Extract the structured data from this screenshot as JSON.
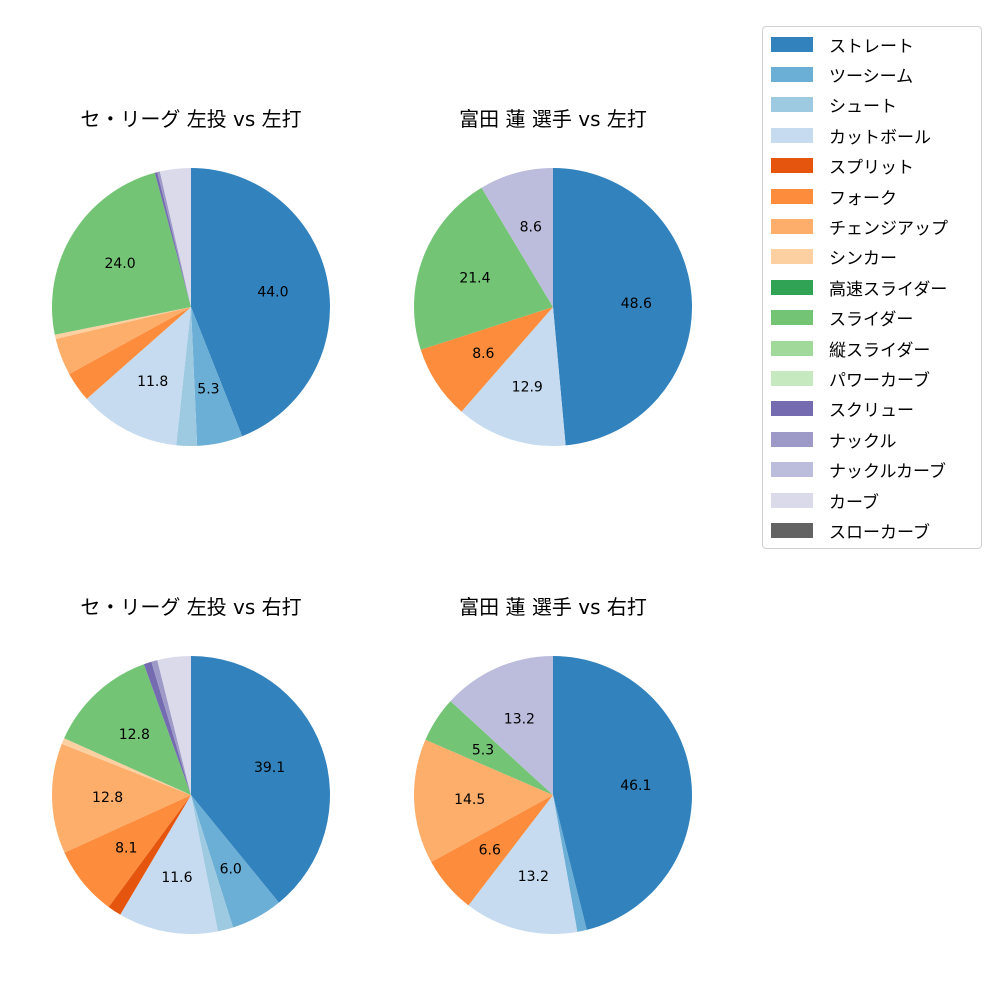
{
  "legend": {
    "items": [
      {
        "label": "ストレート",
        "color": "#3182bd"
      },
      {
        "label": "ツーシーム",
        "color": "#6baed6"
      },
      {
        "label": "シュート",
        "color": "#9ecae1"
      },
      {
        "label": "カットボール",
        "color": "#c6dbef"
      },
      {
        "label": "スプリット",
        "color": "#e6550d"
      },
      {
        "label": "フォーク",
        "color": "#fd8d3c"
      },
      {
        "label": "チェンジアップ",
        "color": "#fdae6b"
      },
      {
        "label": "シンカー",
        "color": "#fdd0a2"
      },
      {
        "label": "高速スライダー",
        "color": "#31a354"
      },
      {
        "label": "スライダー",
        "color": "#74c476"
      },
      {
        "label": "縦スライダー",
        "color": "#a1d99b"
      },
      {
        "label": "パワーカーブ",
        "color": "#c7e9c0"
      },
      {
        "label": "スクリュー",
        "color": "#756bb1"
      },
      {
        "label": "ナックル",
        "color": "#9e9ac8"
      },
      {
        "label": "ナックルカーブ",
        "color": "#bcbddc"
      },
      {
        "label": "カーブ",
        "color": "#dadaeb"
      },
      {
        "label": "スローカーブ",
        "color": "#636363"
      }
    ]
  },
  "panels": [
    {
      "title": "セ・リーグ 左投 vs 左打"
    },
    {
      "title": "富田 蓮 選手 vs 左打"
    },
    {
      "title": "セ・リーグ 左投 vs 右打"
    },
    {
      "title": "富田 蓮 選手 vs 右打"
    }
  ],
  "chart_data": [
    {
      "type": "pie",
      "title": "セ・リーグ 左投 vs 左打",
      "categories": [
        "ストレート",
        "ツーシーム",
        "シュート",
        "カットボール",
        "フォーク",
        "チェンジアップ",
        "シンカー",
        "スライダー",
        "スクリュー",
        "ナックル",
        "カーブ"
      ],
      "values": [
        44.0,
        5.3,
        2.4,
        11.8,
        3.5,
        4.3,
        0.5,
        24.0,
        0.3,
        0.3,
        3.6
      ],
      "labels_shown": [
        "44.0",
        "11.8",
        "24.0"
      ],
      "start_angle": 90,
      "direction": "clockwise"
    },
    {
      "type": "pie",
      "title": "富田 蓮 選手 vs 左打",
      "categories": [
        "ストレート",
        "カットボール",
        "フォーク",
        "スライダー",
        "ナックルカーブ"
      ],
      "values": [
        48.6,
        12.9,
        8.6,
        21.4,
        8.6
      ],
      "labels_shown": [
        "48.6",
        "12.9",
        "8.6",
        "21.4",
        "8.6"
      ],
      "start_angle": 90,
      "direction": "clockwise"
    },
    {
      "type": "pie",
      "title": "セ・リーグ 左投 vs 右打",
      "categories": [
        "ストレート",
        "ツーシーム",
        "シュート",
        "カットボール",
        "スプリット",
        "フォーク",
        "チェンジアップ",
        "シンカー",
        "スライダー",
        "スクリュー",
        "ナックル",
        "カーブ"
      ],
      "values": [
        39.1,
        6.0,
        1.8,
        11.6,
        1.6,
        8.1,
        12.8,
        0.7,
        12.8,
        0.9,
        0.7,
        3.9
      ],
      "labels_shown": [
        "39.1",
        "11.6",
        "8.1",
        "12.8",
        "12.8"
      ],
      "start_angle": 90,
      "direction": "clockwise"
    },
    {
      "type": "pie",
      "title": "富田 蓮 選手 vs 右打",
      "categories": [
        "ストレート",
        "ツーシーム",
        "カットボール",
        "フォーク",
        "チェンジアップ",
        "スライダー",
        "ナックルカーブ"
      ],
      "values": [
        46.1,
        1.1,
        13.2,
        6.6,
        14.5,
        5.3,
        13.2
      ],
      "labels_shown": [
        "46.1",
        "13.2",
        "6.6",
        "14.5",
        "5.3",
        "13.2"
      ],
      "start_angle": 90,
      "direction": "clockwise"
    }
  ]
}
